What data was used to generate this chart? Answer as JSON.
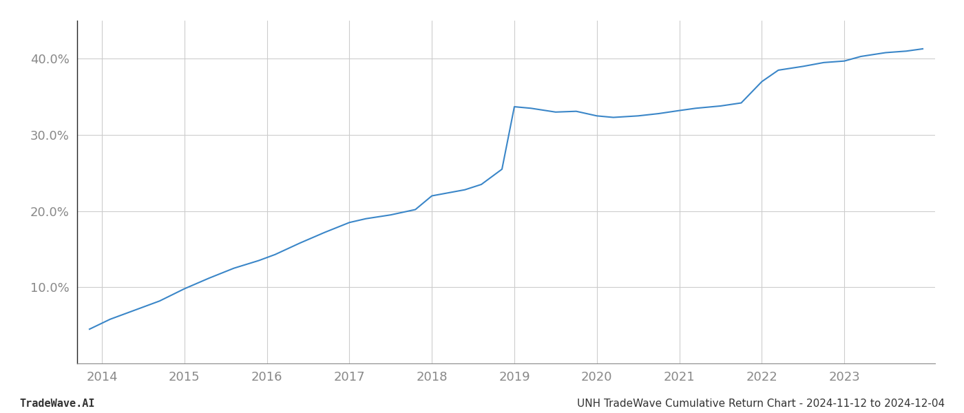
{
  "x_values": [
    2013.85,
    2014.1,
    2014.4,
    2014.7,
    2015.0,
    2015.3,
    2015.6,
    2015.9,
    2016.1,
    2016.4,
    2016.7,
    2017.0,
    2017.2,
    2017.5,
    2017.8,
    2018.0,
    2018.15,
    2018.4,
    2018.6,
    2018.85,
    2019.0,
    2019.2,
    2019.5,
    2019.75,
    2020.0,
    2020.2,
    2020.5,
    2020.75,
    2021.0,
    2021.2,
    2021.5,
    2021.75,
    2022.0,
    2022.2,
    2022.5,
    2022.75,
    2023.0,
    2023.2,
    2023.5,
    2023.75,
    2023.95
  ],
  "y_values": [
    4.5,
    5.8,
    7.0,
    8.2,
    9.8,
    11.2,
    12.5,
    13.5,
    14.3,
    15.8,
    17.2,
    18.5,
    19.0,
    19.5,
    20.2,
    22.0,
    22.3,
    22.8,
    23.5,
    25.5,
    33.7,
    33.5,
    33.0,
    33.1,
    32.5,
    32.3,
    32.5,
    32.8,
    33.2,
    33.5,
    33.8,
    34.2,
    37.0,
    38.5,
    39.0,
    39.5,
    39.7,
    40.3,
    40.8,
    41.0,
    41.3
  ],
  "line_color": "#3a86c8",
  "line_width": 1.5,
  "background_color": "#ffffff",
  "grid_color": "#cccccc",
  "x_ticks": [
    2014,
    2015,
    2016,
    2017,
    2018,
    2019,
    2020,
    2021,
    2022,
    2023
  ],
  "y_ticks": [
    10.0,
    20.0,
    30.0,
    40.0
  ],
  "y_tick_labels": [
    "10.0%",
    "20.0%",
    "30.0%",
    "40.0%"
  ],
  "xlim": [
    2013.7,
    2024.1
  ],
  "ylim": [
    0,
    45
  ],
  "footer_left": "TradeWave.AI",
  "footer_right": "UNH TradeWave Cumulative Return Chart - 2024-11-12 to 2024-12-04",
  "footer_fontsize": 11,
  "tick_fontsize": 13,
  "tick_color": "#888888",
  "left_spine_color": "#222222",
  "bottom_spine_color": "#888888"
}
